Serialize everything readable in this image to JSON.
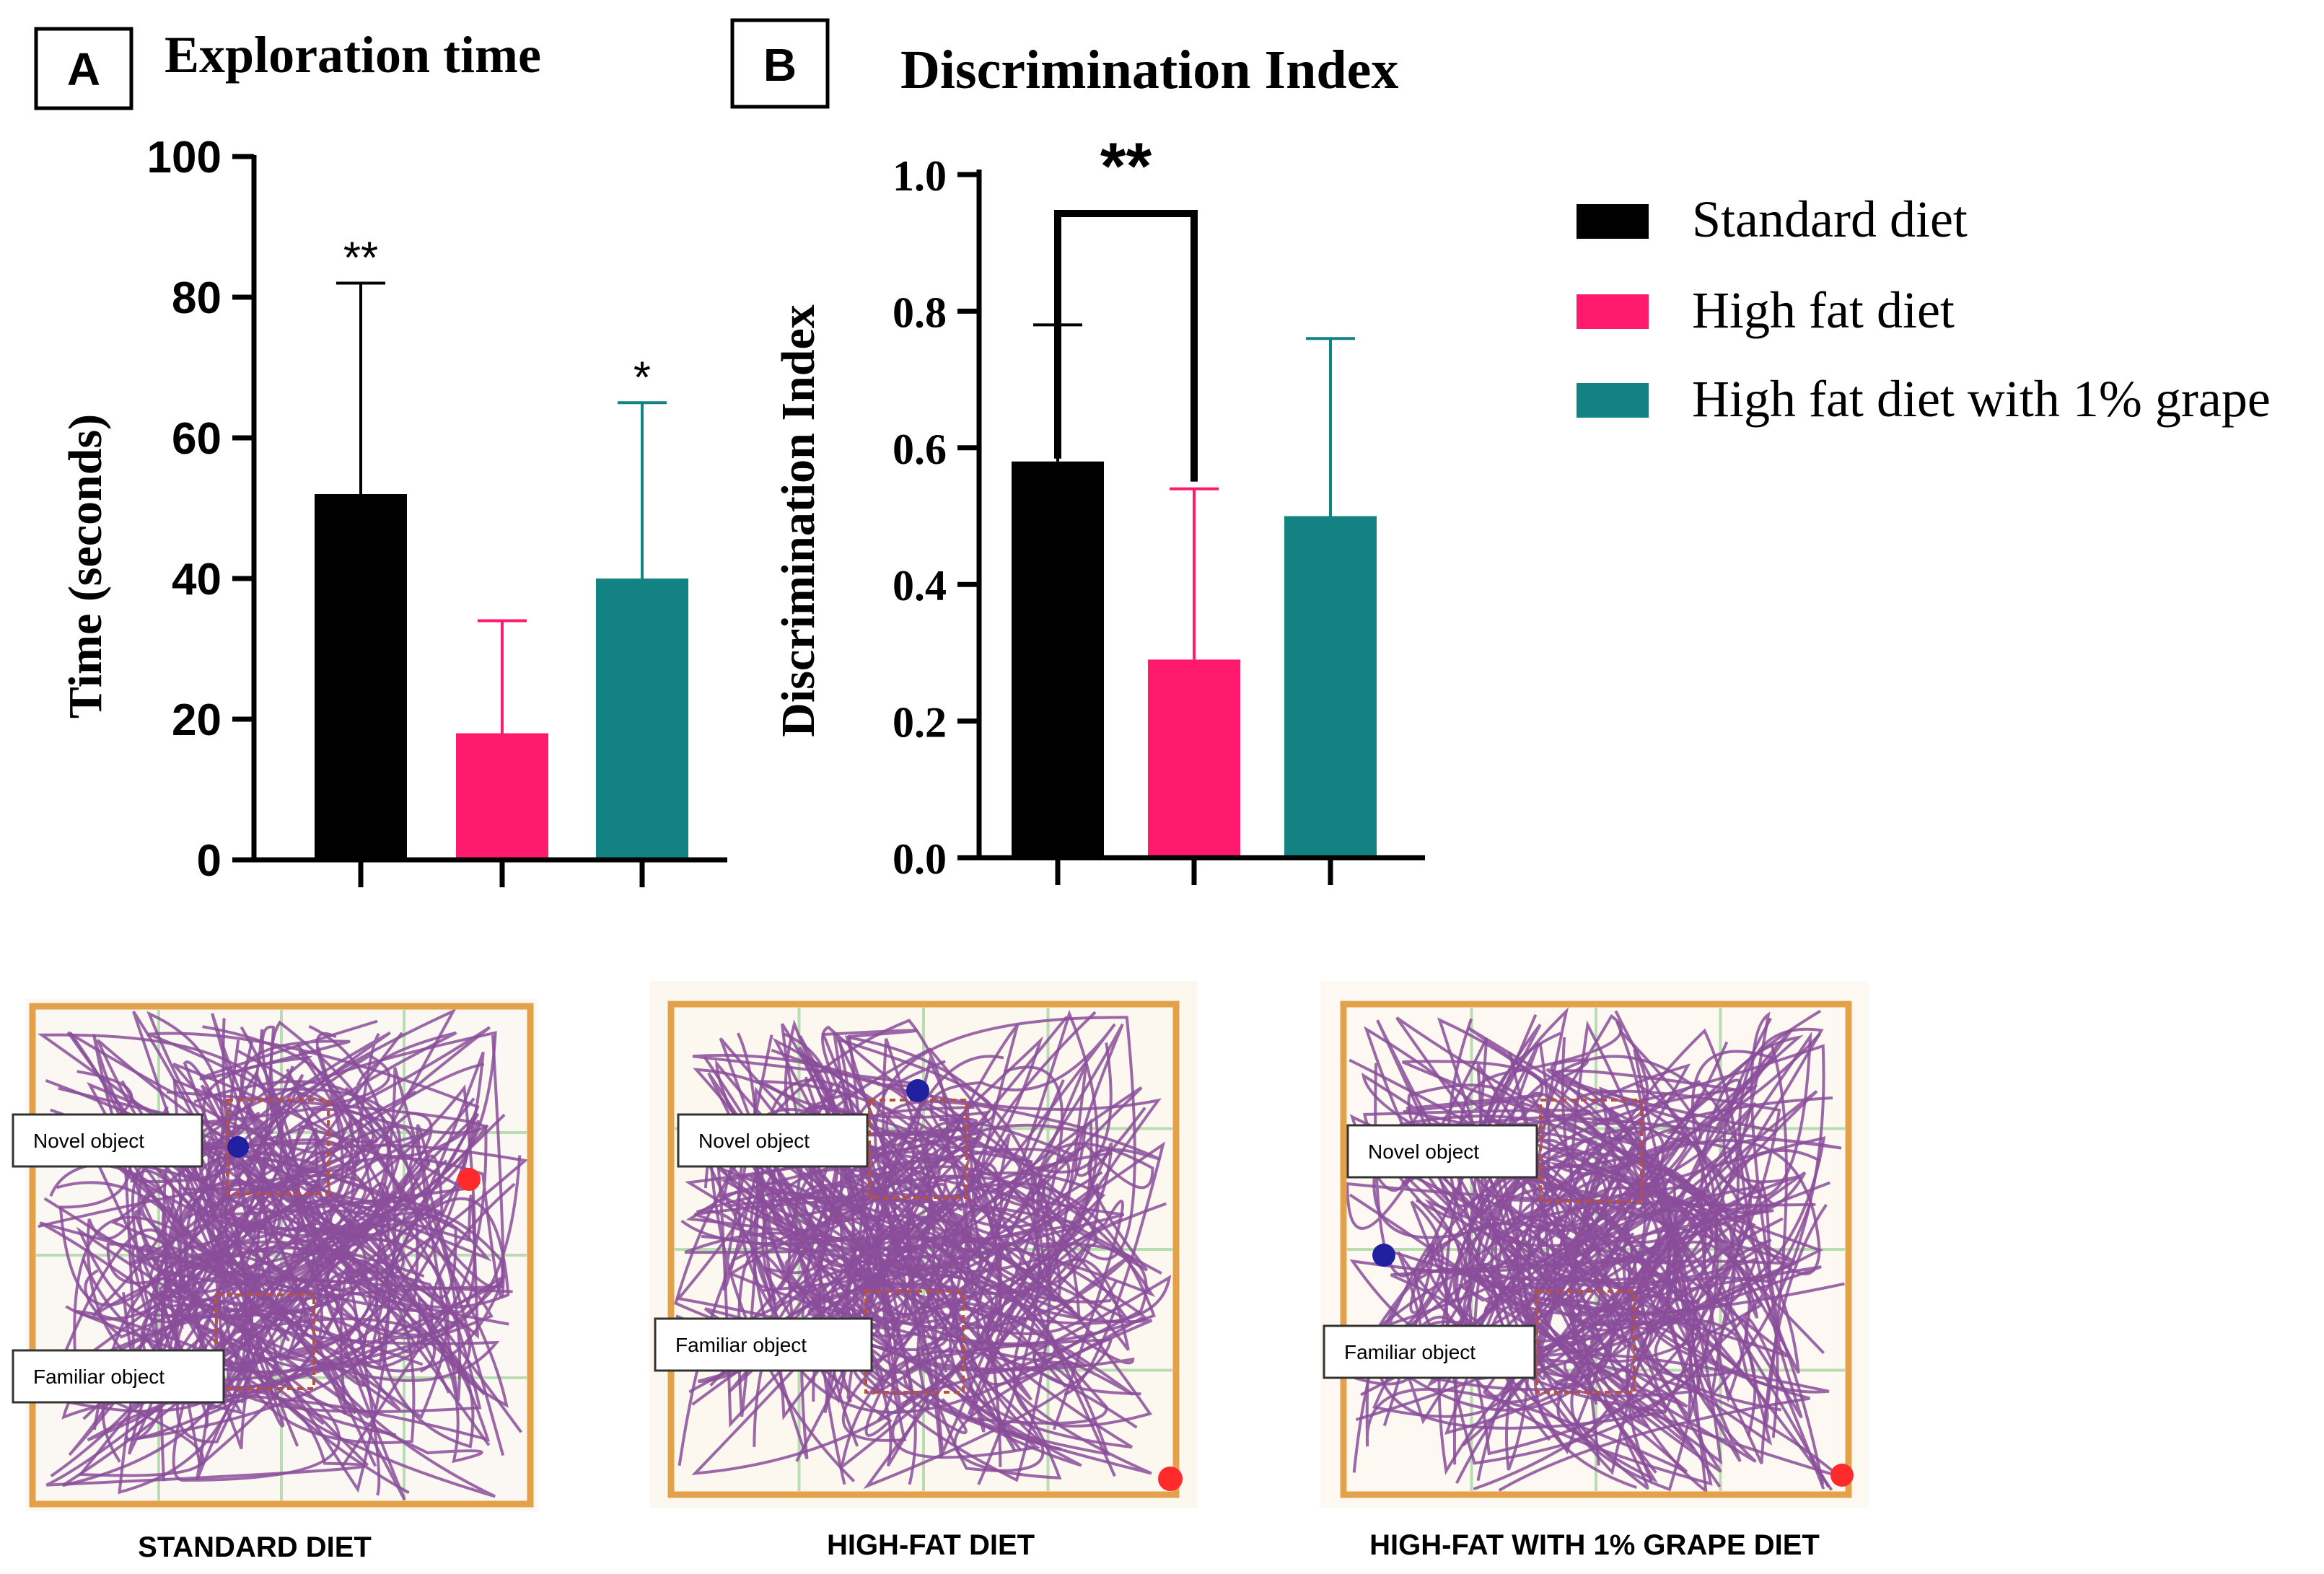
{
  "chart_data": [
    {
      "type": "bar",
      "panel_label": "A",
      "title": "Exploration time",
      "xlabel": "",
      "ylabel": "Time (seconds)",
      "ylim": [
        0,
        100
      ],
      "yticks": [
        "0",
        "20",
        "40",
        "60",
        "80",
        "100"
      ],
      "yticks_values": [
        0,
        20,
        40,
        60,
        80,
        100
      ],
      "categories": [
        "Standard diet",
        "High fat diet",
        "High fat diet with 1% grape"
      ],
      "values": [
        52,
        18,
        40
      ],
      "error_upper": [
        82,
        34,
        65
      ],
      "significance": [
        "**",
        "",
        "*"
      ],
      "colors": [
        "#000000",
        "#ff1a6e",
        "#138282"
      ]
    },
    {
      "type": "bar",
      "panel_label": "B",
      "title": "Discrimination Index",
      "xlabel": "",
      "ylabel": "Discrimination Index",
      "ylim": [
        0,
        1.0
      ],
      "yticks": [
        "0.0",
        "0.2",
        "0.4",
        "0.6",
        "0.8",
        "1.0"
      ],
      "yticks_values": [
        0,
        0.2,
        0.4,
        0.6,
        0.8,
        1.0
      ],
      "categories": [
        "Standard diet",
        "High fat diet",
        "High fat diet with 1% grape"
      ],
      "values": [
        0.58,
        0.29,
        0.5
      ],
      "error_upper": [
        0.78,
        0.54,
        0.76
      ],
      "bracket": {
        "from": 0,
        "to": 1,
        "label": "**"
      },
      "colors": [
        "#000000",
        "#ff1a6e",
        "#138282"
      ]
    }
  ],
  "legend": {
    "items": [
      {
        "label": "Standard diet",
        "color": "#000000"
      },
      {
        "label": "High fat diet",
        "color": "#ff1a6e"
      },
      {
        "label": "High fat diet with 1% grape",
        "color": "#138282"
      }
    ]
  },
  "tracks": [
    {
      "caption": "STANDARD DIET",
      "novel_label": "Novel object",
      "familiar_label": "Familiar object"
    },
    {
      "caption": "HIGH-FAT DIET",
      "novel_label": "Novel object",
      "familiar_label": "Familiar object"
    },
    {
      "caption": "HIGH-FAT WITH 1% GRAPE DIET",
      "novel_label": "Novel object",
      "familiar_label": "Familiar object"
    }
  ],
  "colors": {
    "track_line": "#8a4e9a",
    "arena_border": "#e3a24a",
    "arena_grid": "#b9ddb0",
    "start_dot": "#ff2a2a",
    "end_dot": "#2020a0"
  }
}
